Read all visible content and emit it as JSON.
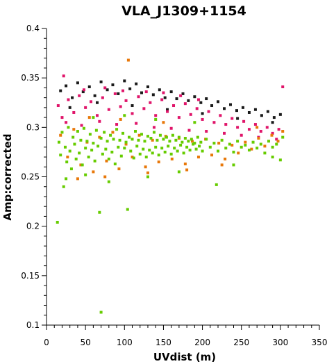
{
  "chart_data": {
    "type": "scatter",
    "title": "VLA_J1309+1154",
    "xlabel": "UVdist (m)",
    "ylabel": "Amp:corrected",
    "xlim": [
      0,
      350
    ],
    "ylim": [
      0.1,
      0.4
    ],
    "x_ticks": [
      "0",
      "50",
      "100",
      "150",
      "200",
      "250",
      "300",
      "350"
    ],
    "y_ticks": [
      "0.4",
      "0.35",
      "0.3",
      "0.25",
      "0.2",
      "0.15",
      "0.1"
    ],
    "grid": false,
    "series": [
      {
        "color": "#1a1a1a",
        "points": [
          [
            18,
            0.337
          ],
          [
            25,
            0.342
          ],
          [
            33,
            0.33
          ],
          [
            40,
            0.345
          ],
          [
            47,
            0.336
          ],
          [
            55,
            0.341
          ],
          [
            62,
            0.332
          ],
          [
            70,
            0.346
          ],
          [
            78,
            0.338
          ],
          [
            85,
            0.343
          ],
          [
            92,
            0.334
          ],
          [
            100,
            0.347
          ],
          [
            107,
            0.339
          ],
          [
            115,
            0.344
          ],
          [
            122,
            0.335
          ],
          [
            130,
            0.341
          ],
          [
            137,
            0.333
          ],
          [
            145,
            0.338
          ],
          [
            152,
            0.33
          ],
          [
            160,
            0.336
          ],
          [
            167,
            0.329
          ],
          [
            175,
            0.334
          ],
          [
            182,
            0.327
          ],
          [
            190,
            0.331
          ],
          [
            198,
            0.325
          ],
          [
            205,
            0.329
          ],
          [
            212,
            0.322
          ],
          [
            220,
            0.326
          ],
          [
            228,
            0.319
          ],
          [
            236,
            0.323
          ],
          [
            244,
            0.317
          ],
          [
            252,
            0.32
          ],
          [
            260,
            0.315
          ],
          [
            268,
            0.318
          ],
          [
            276,
            0.312
          ],
          [
            284,
            0.316
          ],
          [
            292,
            0.31
          ],
          [
            300,
            0.313
          ],
          [
            30,
            0.32
          ],
          [
            65,
            0.325
          ],
          [
            110,
            0.322
          ],
          [
            155,
            0.318
          ],
          [
            200,
            0.314
          ],
          [
            245,
            0.309
          ],
          [
            290,
            0.305
          ]
        ]
      },
      {
        "color": "#e0156a",
        "points": [
          [
            15,
            0.322
          ],
          [
            20,
            0.31
          ],
          [
            28,
            0.328
          ],
          [
            35,
            0.315
          ],
          [
            42,
            0.332
          ],
          [
            50,
            0.32
          ],
          [
            57,
            0.326
          ],
          [
            65,
            0.312
          ],
          [
            72,
            0.33
          ],
          [
            80,
            0.318
          ],
          [
            88,
            0.334
          ],
          [
            95,
            0.321
          ],
          [
            102,
            0.327
          ],
          [
            110,
            0.314
          ],
          [
            118,
            0.331
          ],
          [
            125,
            0.319
          ],
          [
            133,
            0.325
          ],
          [
            140,
            0.312
          ],
          [
            148,
            0.328
          ],
          [
            155,
            0.316
          ],
          [
            163,
            0.322
          ],
          [
            170,
            0.31
          ],
          [
            178,
            0.324
          ],
          [
            185,
            0.313
          ],
          [
            193,
            0.319
          ],
          [
            200,
            0.308
          ],
          [
            208,
            0.316
          ],
          [
            215,
            0.305
          ],
          [
            223,
            0.312
          ],
          [
            230,
            0.303
          ],
          [
            238,
            0.309
          ],
          [
            245,
            0.3
          ],
          [
            253,
            0.306
          ],
          [
            260,
            0.298
          ],
          [
            268,
            0.303
          ],
          [
            275,
            0.296
          ],
          [
            283,
            0.3
          ],
          [
            290,
            0.294
          ],
          [
            298,
            0.298
          ],
          [
            303,
            0.341
          ],
          [
            22,
            0.352
          ],
          [
            48,
            0.338
          ],
          [
            75,
            0.34
          ],
          [
            98,
            0.337
          ],
          [
            128,
            0.336
          ],
          [
            150,
            0.335
          ],
          [
            172,
            0.332
          ],
          [
            195,
            0.328
          ],
          [
            25,
            0.305
          ],
          [
            45,
            0.302
          ],
          [
            68,
            0.306
          ],
          [
            90,
            0.303
          ],
          [
            115,
            0.304
          ],
          [
            138,
            0.3
          ],
          [
            160,
            0.299
          ],
          [
            183,
            0.297
          ],
          [
            205,
            0.296
          ],
          [
            228,
            0.294
          ],
          [
            250,
            0.292
          ],
          [
            272,
            0.29
          ],
          [
            295,
            0.288
          ]
        ]
      },
      {
        "color": "#e8780a",
        "points": [
          [
            18,
            0.292
          ],
          [
            27,
            0.27
          ],
          [
            35,
            0.298
          ],
          [
            44,
            0.262
          ],
          [
            52,
            0.285
          ],
          [
            60,
            0.255
          ],
          [
            68,
            0.29
          ],
          [
            77,
            0.266
          ],
          [
            85,
            0.295
          ],
          [
            93,
            0.258
          ],
          [
            102,
            0.283
          ],
          [
            105,
            0.368
          ],
          [
            110,
            0.27
          ],
          [
            119,
            0.292
          ],
          [
            127,
            0.26
          ],
          [
            136,
            0.287
          ],
          [
            144,
            0.265
          ],
          [
            153,
            0.291
          ],
          [
            161,
            0.268
          ],
          [
            170,
            0.289
          ],
          [
            178,
            0.263
          ],
          [
            187,
            0.286
          ],
          [
            195,
            0.27
          ],
          [
            204,
            0.288
          ],
          [
            212,
            0.272
          ],
          [
            221,
            0.284
          ],
          [
            229,
            0.268
          ],
          [
            238,
            0.282
          ],
          [
            246,
            0.274
          ],
          [
            255,
            0.285
          ],
          [
            263,
            0.278
          ],
          [
            272,
            0.289
          ],
          [
            280,
            0.281
          ],
          [
            289,
            0.292
          ],
          [
            297,
            0.286
          ],
          [
            303,
            0.296
          ],
          [
            40,
            0.248
          ],
          [
            75,
            0.25
          ],
          [
            130,
            0.254
          ],
          [
            180,
            0.257
          ],
          [
            225,
            0.262
          ],
          [
            270,
            0.3
          ],
          [
            150,
            0.305
          ],
          [
            95,
            0.308
          ],
          [
            55,
            0.31
          ]
        ]
      },
      {
        "color": "#66cc00",
        "points": [
          [
            14,
            0.204
          ],
          [
            16,
            0.285
          ],
          [
            18,
            0.272
          ],
          [
            20,
            0.295
          ],
          [
            22,
            0.24
          ],
          [
            24,
            0.28
          ],
          [
            26,
            0.265
          ],
          [
            28,
            0.3
          ],
          [
            30,
            0.276
          ],
          [
            32,
            0.258
          ],
          [
            34,
            0.29
          ],
          [
            36,
            0.283
          ],
          [
            38,
            0.268
          ],
          [
            40,
            0.296
          ],
          [
            42,
            0.274
          ],
          [
            44,
            0.287
          ],
          [
            46,
            0.262
          ],
          [
            48,
            0.299
          ],
          [
            50,
            0.279
          ],
          [
            52,
            0.286
          ],
          [
            54,
            0.27
          ],
          [
            56,
            0.293
          ],
          [
            58,
            0.277
          ],
          [
            60,
            0.284
          ],
          [
            62,
            0.266
          ],
          [
            64,
            0.297
          ],
          [
            66,
            0.281
          ],
          [
            68,
            0.214
          ],
          [
            70,
            0.289
          ],
          [
            72,
            0.273
          ],
          [
            74,
            0.295
          ],
          [
            76,
            0.278
          ],
          [
            78,
            0.286
          ],
          [
            80,
            0.268
          ],
          [
            82,
            0.292
          ],
          [
            84,
            0.275
          ],
          [
            86,
            0.288
          ],
          [
            88,
            0.263
          ],
          [
            90,
            0.298
          ],
          [
            92,
            0.28
          ],
          [
            94,
            0.287
          ],
          [
            96,
            0.271
          ],
          [
            98,
            0.294
          ],
          [
            100,
            0.279
          ],
          [
            102,
            0.285
          ],
          [
            104,
            0.217
          ],
          [
            106,
            0.29
          ],
          [
            108,
            0.276
          ],
          [
            110,
            0.288
          ],
          [
            112,
            0.269
          ],
          [
            114,
            0.296
          ],
          [
            116,
            0.281
          ],
          [
            118,
            0.287
          ],
          [
            120,
            0.273
          ],
          [
            122,
            0.293
          ],
          [
            124,
            0.278
          ],
          [
            126,
            0.286
          ],
          [
            128,
            0.27
          ],
          [
            130,
            0.291
          ],
          [
            132,
            0.277
          ],
          [
            134,
            0.289
          ],
          [
            136,
            0.274
          ],
          [
            138,
            0.295
          ],
          [
            140,
            0.28
          ],
          [
            142,
            0.287
          ],
          [
            144,
            0.272
          ],
          [
            146,
            0.292
          ],
          [
            148,
            0.279
          ],
          [
            150,
            0.288
          ],
          [
            152,
            0.275
          ],
          [
            154,
            0.29
          ],
          [
            156,
            0.281
          ],
          [
            158,
            0.286
          ],
          [
            160,
            0.273
          ],
          [
            162,
            0.292
          ],
          [
            164,
            0.279
          ],
          [
            166,
            0.287
          ],
          [
            168,
            0.276
          ],
          [
            170,
            0.29
          ],
          [
            172,
            0.282
          ],
          [
            174,
            0.285
          ],
          [
            176,
            0.274
          ],
          [
            178,
            0.289
          ],
          [
            180,
            0.28
          ],
          [
            182,
            0.286
          ],
          [
            184,
            0.277
          ],
          [
            186,
            0.288
          ],
          [
            188,
            0.283
          ],
          [
            190,
            0.284
          ],
          [
            192,
            0.278
          ],
          [
            194,
            0.29
          ],
          [
            196,
            0.281
          ],
          [
            198,
            0.285
          ],
          [
            200,
            0.276
          ],
          [
            205,
            0.288
          ],
          [
            210,
            0.28
          ],
          [
            215,
            0.284
          ],
          [
            218,
            0.242
          ],
          [
            220,
            0.276
          ],
          [
            225,
            0.287
          ],
          [
            230,
            0.279
          ],
          [
            235,
            0.283
          ],
          [
            240,
            0.275
          ],
          [
            245,
            0.286
          ],
          [
            250,
            0.28
          ],
          [
            255,
            0.282
          ],
          [
            260,
            0.277
          ],
          [
            265,
            0.285
          ],
          [
            270,
            0.279
          ],
          [
            275,
            0.283
          ],
          [
            280,
            0.274
          ],
          [
            285,
            0.286
          ],
          [
            290,
            0.28
          ],
          [
            295,
            0.283
          ],
          [
            300,
            0.267
          ],
          [
            303,
            0.29
          ],
          [
            70,
            0.113
          ],
          [
            25,
            0.248
          ],
          [
            50,
            0.252
          ],
          [
            80,
            0.245
          ],
          [
            130,
            0.25
          ],
          [
            170,
            0.255
          ],
          [
            240,
            0.262
          ],
          [
            290,
            0.27
          ],
          [
            60,
            0.31
          ],
          [
            100,
            0.312
          ],
          [
            140,
            0.308
          ],
          [
            190,
            0.305
          ]
        ]
      }
    ]
  }
}
